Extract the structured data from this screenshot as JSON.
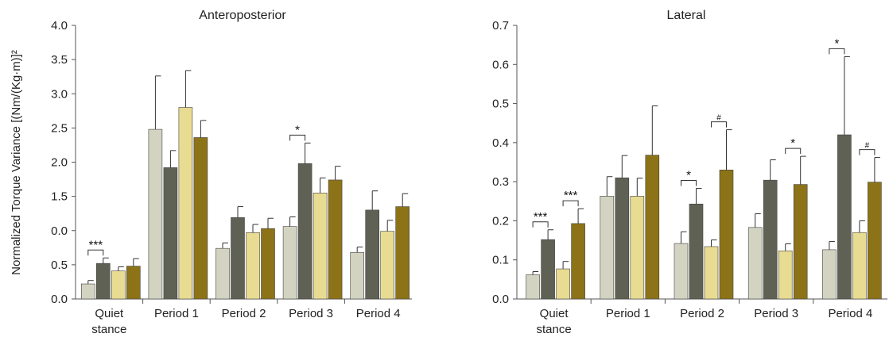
{
  "ylabel": "Normalized Torque Variance [(Nm/(Kg·m)]²",
  "colors": [
    "#d3d3c1",
    "#5f6154",
    "#e8db92",
    "#8c7317"
  ],
  "chart_data": [
    {
      "type": "bar",
      "title": "Anteroposterior",
      "ylabel": "Normalized Torque Variance [(Nm/(Kg·m)]²",
      "categories": [
        "Quiet stance",
        "Period 1",
        "Period 2",
        "Period 3",
        "Period 4"
      ],
      "ylim": [
        0,
        4.0
      ],
      "yticks": [
        "0.0",
        "0.5",
        "1.0",
        "1.5",
        "2.0",
        "2.5",
        "3.0",
        "3.5",
        "4.0"
      ],
      "ytick_note": "tick labels as printed: 0.0, 0.5, 0.0, 1.5, 2.0, 2.5, 3.0, 3.5, 4.0",
      "ytick_labels": [
        "0.0",
        "0.5",
        "0.0",
        "1.5",
        "2.0",
        "2.5",
        "3.0",
        "3.5",
        "4.0"
      ],
      "series": [
        {
          "values": [
            0.22,
            2.48,
            0.74,
            1.06,
            0.68
          ],
          "errors": [
            0.05,
            0.78,
            0.08,
            0.14,
            0.08
          ]
        },
        {
          "values": [
            0.52,
            1.92,
            1.19,
            1.98,
            1.3
          ],
          "errors": [
            0.08,
            0.25,
            0.16,
            0.3,
            0.28
          ]
        },
        {
          "values": [
            0.41,
            2.8,
            0.97,
            1.55,
            0.99
          ],
          "errors": [
            0.06,
            0.54,
            0.12,
            0.22,
            0.16
          ]
        },
        {
          "values": [
            0.48,
            2.36,
            1.03,
            1.74,
            1.35
          ],
          "errors": [
            0.11,
            0.25,
            0.15,
            0.2,
            0.19
          ]
        }
      ],
      "annotations": [
        {
          "category": 0,
          "pair": [
            0,
            1
          ],
          "label": "***"
        },
        {
          "category": 3,
          "pair": [
            0,
            1
          ],
          "label": "*"
        }
      ]
    },
    {
      "type": "bar",
      "title": "Lateral",
      "categories": [
        "Quiet stance",
        "Period 1",
        "Period 2",
        "Period 3",
        "Period 4"
      ],
      "ylim": [
        0,
        0.7
      ],
      "ytick_labels": [
        "0.0",
        "0.1",
        "0.2",
        "0.3",
        "0.4",
        "0.5",
        "0.6",
        "0.7"
      ],
      "series": [
        {
          "values": [
            0.062,
            0.263,
            0.142,
            0.183,
            0.126
          ],
          "errors": [
            0.008,
            0.05,
            0.03,
            0.035,
            0.021
          ]
        },
        {
          "values": [
            0.152,
            0.31,
            0.243,
            0.304,
            0.42
          ],
          "errors": [
            0.025,
            0.057,
            0.04,
            0.052,
            0.2
          ]
        },
        {
          "values": [
            0.077,
            0.263,
            0.134,
            0.123,
            0.17
          ],
          "errors": [
            0.019,
            0.046,
            0.017,
            0.018,
            0.03
          ]
        },
        {
          "values": [
            0.193,
            0.368,
            0.33,
            0.293,
            0.299
          ],
          "errors": [
            0.038,
            0.126,
            0.103,
            0.072,
            0.063
          ]
        }
      ],
      "annotations": [
        {
          "category": 0,
          "pair": [
            0,
            1
          ],
          "label": "***"
        },
        {
          "category": 0,
          "pair": [
            2,
            3
          ],
          "label": "***"
        },
        {
          "category": 2,
          "pair": [
            0,
            1
          ],
          "label": "*"
        },
        {
          "category": 2,
          "pair": [
            2,
            3
          ],
          "label": "#"
        },
        {
          "category": 3,
          "pair": [
            2,
            3
          ],
          "label": "*"
        },
        {
          "category": 4,
          "pair": [
            0,
            1
          ],
          "label": "*"
        },
        {
          "category": 4,
          "pair": [
            2,
            3
          ],
          "label": "#"
        }
      ]
    }
  ]
}
